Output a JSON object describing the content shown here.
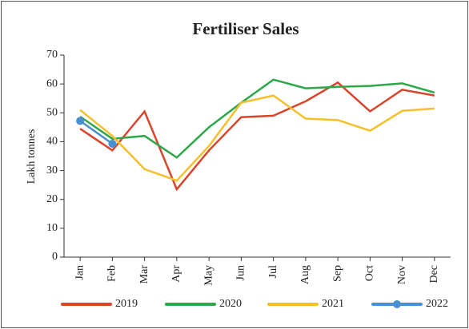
{
  "chart_data": {
    "type": "line",
    "title": "Fertiliser Sales",
    "y_label": "Lakh tonnes",
    "categories": [
      "Jan",
      "Feb",
      "Mar",
      "Apr",
      "May",
      "Jun",
      "Jul",
      "Aug",
      "Sep",
      "Oct",
      "Nov",
      "Dec"
    ],
    "series": [
      {
        "name": "2019",
        "color": "#d9452b",
        "values": [
          44.5,
          37,
          50.5,
          23.5,
          37,
          48.5,
          49,
          54,
          60.5,
          50.5,
          58,
          56
        ]
      },
      {
        "name": "2020",
        "color": "#2ca84a",
        "values": [
          48.7,
          41,
          42,
          34.5,
          45,
          53.5,
          61.5,
          58.5,
          59,
          59.3,
          60.2,
          57
        ]
      },
      {
        "name": "2021",
        "color": "#f5c02c",
        "values": [
          51,
          42,
          30.5,
          26.5,
          38.5,
          53.5,
          56,
          48,
          47.5,
          43.8,
          50.7,
          51.5
        ]
      },
      {
        "name": "2022",
        "color": "#4a8fd0",
        "marker": true,
        "values": [
          47.2,
          39.3,
          null,
          null,
          null,
          null,
          null,
          null,
          null,
          null,
          null,
          null
        ]
      }
    ],
    "ylim": [
      0,
      70
    ],
    "yticks": [
      0,
      10,
      20,
      30,
      40,
      50,
      60,
      70
    ],
    "legend": "bottom"
  }
}
